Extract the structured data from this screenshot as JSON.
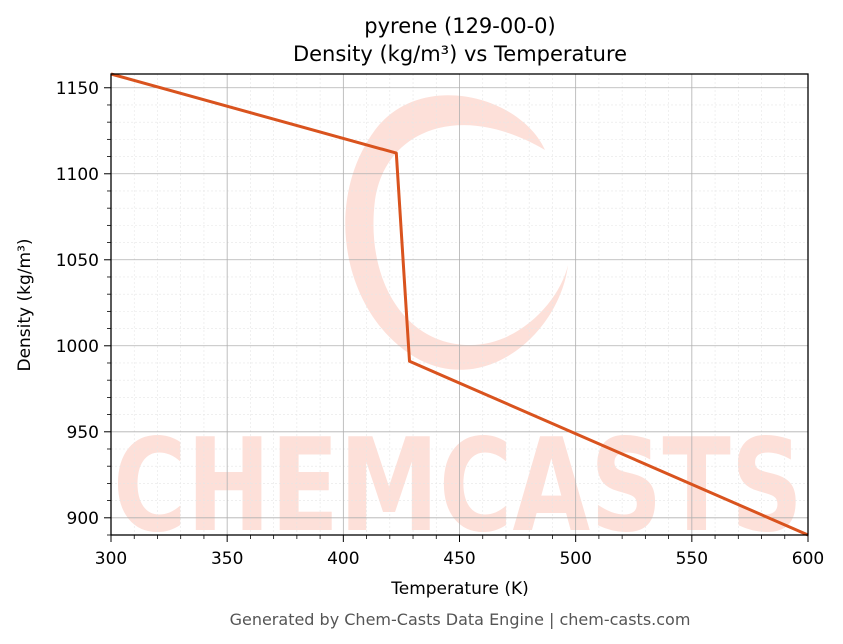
{
  "chart_data": {
    "type": "line",
    "title": "pyrene (129-00-0)",
    "subtitle": "Density (kg/m³) vs Temperature",
    "xlabel": "Temperature (K)",
    "ylabel": "Density (kg/m³)",
    "xlim": [
      300,
      600
    ],
    "ylim": [
      890,
      1158
    ],
    "xticks": [
      300,
      350,
      400,
      450,
      500,
      550,
      600
    ],
    "yticks": [
      900,
      950,
      1000,
      1050,
      1100,
      1150
    ],
    "grid": true,
    "series": [
      {
        "color": "#d9531e",
        "x": [
          300,
          422.8,
          428.5,
          600
        ],
        "y": [
          1158,
          1112,
          991,
          890
        ]
      }
    ]
  },
  "watermark": {
    "text": "CHEMCASTS",
    "color": "#fde0d9"
  },
  "footer": "Generated by Chem-Casts Data Engine | chem-casts.com"
}
